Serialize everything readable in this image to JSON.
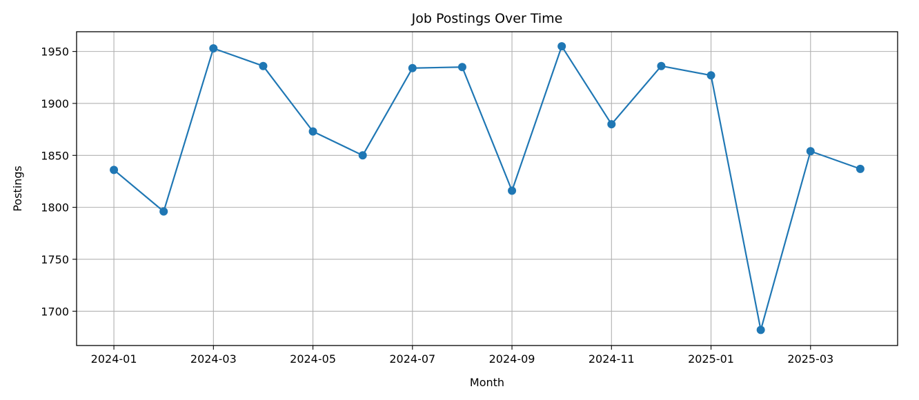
{
  "chart_data": {
    "type": "line",
    "title": "Job Postings Over Time",
    "xlabel": "Month",
    "ylabel": "Postings",
    "x": [
      "2024-01",
      "2024-02",
      "2024-03",
      "2024-04",
      "2024-05",
      "2024-06",
      "2024-07",
      "2024-08",
      "2024-09",
      "2024-10",
      "2024-11",
      "2024-12",
      "2025-01",
      "2025-02",
      "2025-03",
      "2025-04"
    ],
    "series": [
      {
        "values": [
          1836,
          1796,
          1953,
          1936,
          1873,
          1850,
          1934,
          1935,
          1816,
          1955,
          1880,
          1936,
          1927,
          1682,
          1854,
          1837
        ]
      }
    ],
    "x_tick_labels": [
      "2024-01",
      "2024-03",
      "2024-05",
      "2024-07",
      "2024-09",
      "2024-11",
      "2025-01",
      "2025-03"
    ],
    "y_ticks": [
      1700,
      1750,
      1800,
      1850,
      1900,
      1950
    ],
    "ylim": [
      1667,
      1969
    ],
    "grid": true,
    "colors": {
      "line": "#1f77b4",
      "grid": "#b0b0b0",
      "axes": "#000000"
    }
  }
}
